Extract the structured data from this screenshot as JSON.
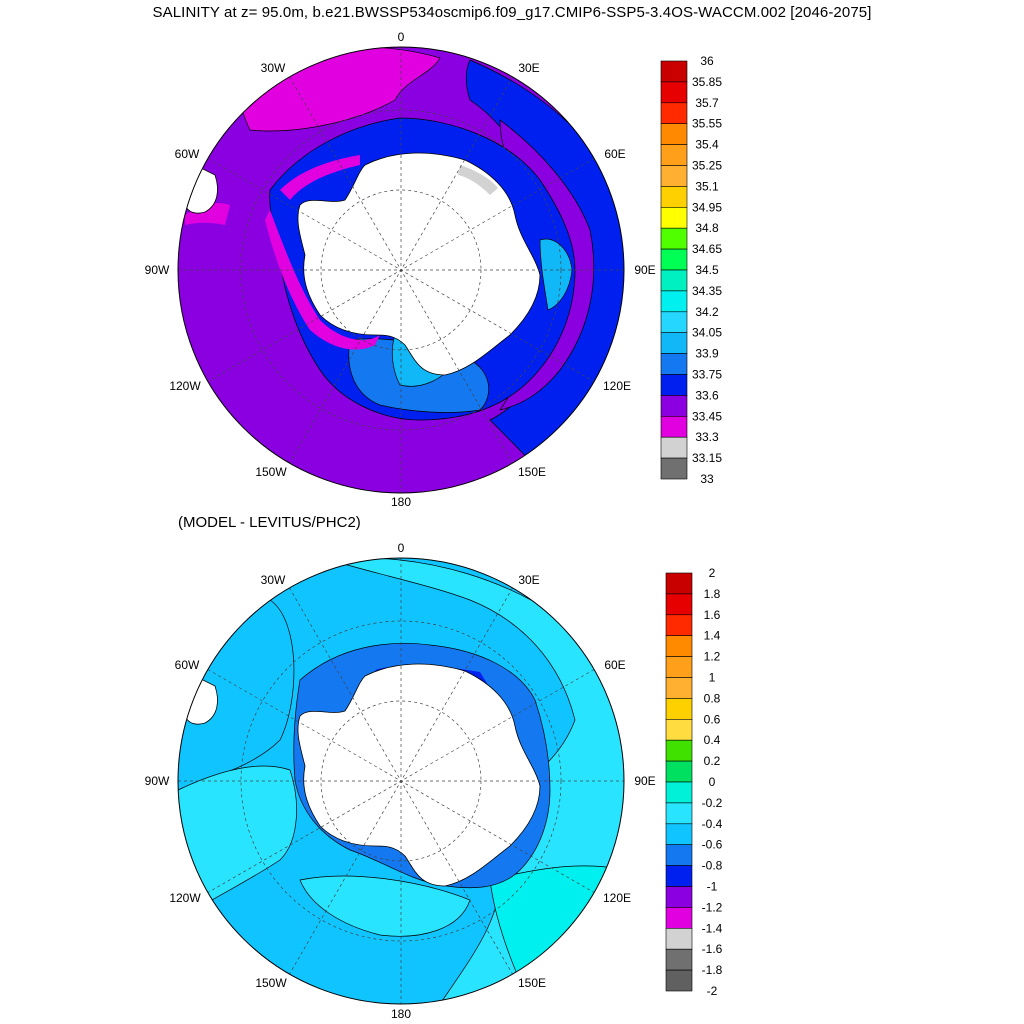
{
  "title": "SALINITY at z=  95.0m, b.e21.BWSSP534oscmip6.f09_g17.CMIP6-SSP5-3.4OS-WACCM.002 [2046-2075]",
  "subtitle": "(MODEL - LEVITUS/PHC2)",
  "longitude_labels": {
    "top": "0",
    "tl30": "30W",
    "tr30": "30E",
    "l60": "60W",
    "r60": "60E",
    "l90": "90W",
    "r90": "90E",
    "l120": "120W",
    "r120": "120E",
    "l150": "150W",
    "r150": "150E",
    "bottom": "180"
  },
  "colors": {
    "land": "#ffffff",
    "coast": "#000000"
  },
  "colorbar1": {
    "labels": [
      "36",
      "35.85",
      "35.7",
      "35.55",
      "35.4",
      "35.25",
      "35.1",
      "34.95",
      "34.8",
      "34.65",
      "34.5",
      "34.35",
      "34.2",
      "34.05",
      "33.9",
      "33.75",
      "33.6",
      "33.45",
      "33.3",
      "33.15",
      "33"
    ],
    "colors": [
      "#c80000",
      "#e60000",
      "#ff2a00",
      "#ff8a00",
      "#ff9f1a",
      "#ffb030",
      "#ffd000",
      "#ffff00",
      "#50ff00",
      "#00ff55",
      "#00f0c0",
      "#00f0f0",
      "#25d6ff",
      "#10b8f8",
      "#1478f0",
      "#0020f0",
      "#8a00e0",
      "#e000e0",
      "#d2d2d2",
      "#707070"
    ]
  },
  "colorbar2": {
    "labels": [
      "2",
      "1.8",
      "1.6",
      "1.4",
      "1.2",
      "1",
      "0.8",
      "0.6",
      "0.4",
      "0.2",
      "0",
      "-0.2",
      "-0.4",
      "-0.6",
      "-0.8",
      "-1",
      "-1.2",
      "-1.4",
      "-1.6",
      "-1.8",
      "-2"
    ],
    "colors": [
      "#c80000",
      "#e60000",
      "#ff2a00",
      "#ff8a00",
      "#ff9f1a",
      "#ffb030",
      "#ffd000",
      "#ffdd40",
      "#40e000",
      "#00e060",
      "#00f0d8",
      "#28e4ff",
      "#10c4ff",
      "#1478f0",
      "#0020f0",
      "#8a00e0",
      "#e000e0",
      "#d2d2d2",
      "#707070",
      "#606060"
    ]
  }
}
